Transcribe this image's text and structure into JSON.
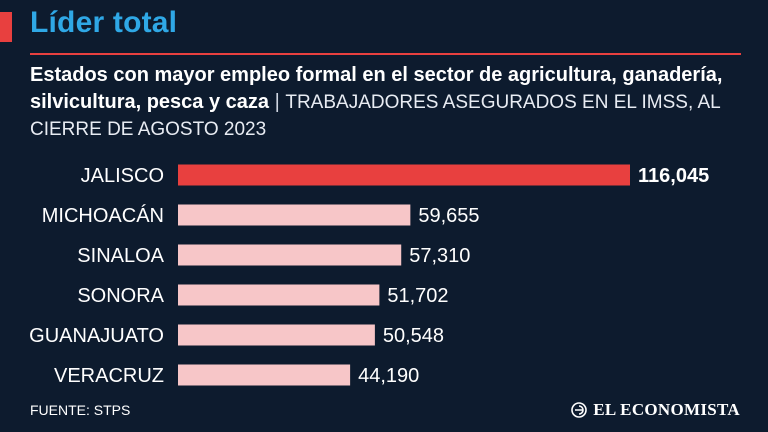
{
  "header": {
    "title": "Líder total",
    "subtitle_bold": "Estados con mayor empleo formal en el sector de agricultura, ganadería, silvicultura, pesca y caza",
    "subtitle_separator": "|",
    "subtitle_light": "TRABAJADORES ASEGURADOS EN EL IMSS, AL CIERRE DE AGOSTO 2023"
  },
  "colors": {
    "background": "#0d1b2e",
    "accent": "#e8403f",
    "title": "#2fa8e6",
    "bar_highlight": "#e8403f",
    "bar": "#f7c6c8"
  },
  "chart_data": {
    "type": "bar",
    "orientation": "horizontal",
    "categories": [
      "JALISCO",
      "MICHOACÁN",
      "SINALOA",
      "SONORA",
      "GUANAJUATO",
      "VERACRUZ"
    ],
    "values": [
      116045,
      59655,
      57310,
      51702,
      50548,
      44190
    ],
    "value_labels": [
      "116,045",
      "59,655",
      "57,310",
      "51,702",
      "50,548",
      "44,190"
    ],
    "highlight_index": 0,
    "xlim": [
      0,
      116045
    ]
  },
  "footer": {
    "source": "FUENTE: STPS",
    "brand": "EL ECONOMISTA",
    "brand_icon": "el-economista-logo-icon"
  }
}
